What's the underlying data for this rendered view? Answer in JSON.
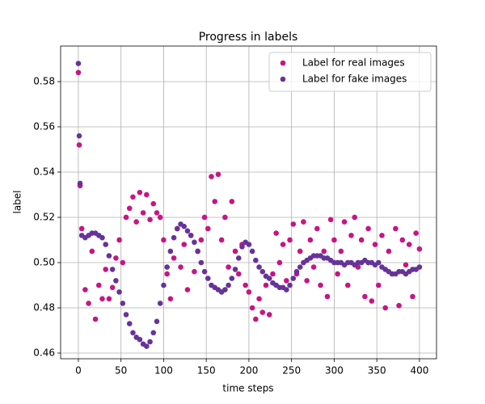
{
  "chart_data": {
    "type": "scatter",
    "title": "Progress in labels",
    "x_label": "time steps",
    "y_label": "label",
    "x": [
      0,
      1,
      2,
      4,
      8,
      12,
      16,
      20,
      24,
      28,
      32,
      36,
      40,
      44,
      48,
      52,
      56,
      60,
      64,
      68,
      72,
      76,
      80,
      84,
      88,
      92,
      96,
      100,
      104,
      108,
      112,
      116,
      120,
      124,
      128,
      132,
      136,
      140,
      144,
      148,
      152,
      156,
      160,
      164,
      168,
      172,
      176,
      180,
      184,
      188,
      192,
      196,
      200,
      204,
      208,
      212,
      216,
      220,
      224,
      228,
      232,
      236,
      240,
      244,
      248,
      252,
      256,
      260,
      264,
      268,
      272,
      276,
      280,
      284,
      288,
      292,
      296,
      300,
      304,
      308,
      312,
      316,
      320,
      324,
      328,
      332,
      336,
      340,
      344,
      348,
      352,
      356,
      360,
      364,
      368,
      372,
      376,
      380,
      384,
      388,
      392,
      396,
      400
    ],
    "series": [
      {
        "name": "Label for real images",
        "color": "#c71585",
        "values": [
          0.584,
          0.552,
          0.534,
          0.515,
          0.488,
          0.482,
          0.505,
          0.475,
          0.49,
          0.484,
          0.497,
          0.484,
          0.489,
          0.502,
          0.51,
          0.5,
          0.52,
          0.524,
          0.529,
          0.518,
          0.531,
          0.522,
          0.53,
          0.519,
          0.526,
          0.522,
          0.52,
          0.51,
          0.495,
          0.484,
          0.502,
          0.515,
          0.498,
          0.508,
          0.488,
          0.512,
          0.496,
          0.505,
          0.51,
          0.52,
          0.515,
          0.538,
          0.527,
          0.539,
          0.51,
          0.52,
          0.498,
          0.527,
          0.505,
          0.495,
          0.508,
          0.49,
          0.487,
          0.48,
          0.475,
          0.484,
          0.478,
          0.49,
          0.477,
          0.495,
          0.513,
          0.5,
          0.508,
          0.492,
          0.51,
          0.517,
          0.495,
          0.505,
          0.518,
          0.492,
          0.51,
          0.498,
          0.515,
          0.49,
          0.505,
          0.485,
          0.519,
          0.51,
          0.495,
          0.505,
          0.518,
          0.49,
          0.512,
          0.52,
          0.498,
          0.51,
          0.485,
          0.515,
          0.483,
          0.508,
          0.49,
          0.512,
          0.48,
          0.505,
          0.495,
          0.515,
          0.481,
          0.51,
          0.499,
          0.508,
          0.485,
          0.513,
          0.506
        ]
      },
      {
        "name": "Label for fake images",
        "color": "#663399",
        "values": [
          0.588,
          0.556,
          0.535,
          0.512,
          0.511,
          0.512,
          0.513,
          0.513,
          0.512,
          0.511,
          0.508,
          0.503,
          0.497,
          0.492,
          0.487,
          0.482,
          0.477,
          0.473,
          0.469,
          0.467,
          0.466,
          0.464,
          0.463,
          0.465,
          0.469,
          0.474,
          0.482,
          0.49,
          0.498,
          0.505,
          0.511,
          0.515,
          0.517,
          0.516,
          0.514,
          0.512,
          0.509,
          0.505,
          0.5,
          0.496,
          0.493,
          0.49,
          0.489,
          0.488,
          0.487,
          0.488,
          0.49,
          0.493,
          0.497,
          0.502,
          0.507,
          0.509,
          0.508,
          0.505,
          0.501,
          0.498,
          0.496,
          0.494,
          0.493,
          0.491,
          0.49,
          0.489,
          0.489,
          0.488,
          0.49,
          0.493,
          0.496,
          0.498,
          0.5,
          0.501,
          0.502,
          0.503,
          0.503,
          0.503,
          0.502,
          0.502,
          0.501,
          0.5,
          0.5,
          0.5,
          0.499,
          0.5,
          0.5,
          0.499,
          0.5,
          0.5,
          0.501,
          0.5,
          0.5,
          0.499,
          0.5,
          0.498,
          0.497,
          0.496,
          0.495,
          0.495,
          0.496,
          0.496,
          0.495,
          0.496,
          0.497,
          0.497,
          0.498
        ]
      }
    ],
    "xlim": [
      -20.8,
      420
    ],
    "ylim": [
      0.4575,
      0.5957
    ],
    "xticks": [
      0,
      50,
      100,
      150,
      200,
      250,
      300,
      350,
      400
    ],
    "yticks": [
      0.46,
      0.48,
      {
        "value": 0.5,
        "label": "0.50"
      },
      0.52,
      0.54,
      0.56,
      0.58
    ],
    "grid": true,
    "legend": "upper right"
  }
}
